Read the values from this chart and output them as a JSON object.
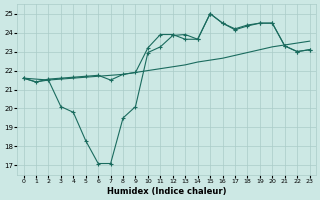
{
  "xlabel": "Humidex (Indice chaleur)",
  "bg_color": "#cce8e4",
  "line_color": "#1a6b5e",
  "grid_color": "#aaccc8",
  "xlim": [
    -0.5,
    23.5
  ],
  "ylim": [
    16.5,
    25.5
  ],
  "yticks": [
    17,
    18,
    19,
    20,
    21,
    22,
    23,
    24,
    25
  ],
  "xticks": [
    0,
    1,
    2,
    3,
    4,
    5,
    6,
    7,
    8,
    9,
    10,
    11,
    12,
    13,
    14,
    15,
    16,
    17,
    18,
    19,
    20,
    21,
    22,
    23
  ],
  "line1_x": [
    0,
    1,
    2,
    3,
    4,
    5,
    6,
    7,
    8,
    9,
    10,
    11,
    12,
    13,
    14,
    15,
    16,
    17,
    18,
    19,
    20,
    21,
    22,
    23
  ],
  "line1_y": [
    21.6,
    21.4,
    21.5,
    21.55,
    21.6,
    21.65,
    21.7,
    21.75,
    21.8,
    21.9,
    22.0,
    22.1,
    22.2,
    22.3,
    22.45,
    22.55,
    22.65,
    22.8,
    22.95,
    23.1,
    23.25,
    23.35,
    23.45,
    23.55
  ],
  "line2_x": [
    0,
    2,
    3,
    4,
    5,
    6,
    7,
    8,
    9,
    10,
    11,
    12,
    13,
    14,
    15,
    16,
    17,
    18,
    19,
    20,
    21,
    22,
    23
  ],
  "line2_y": [
    21.6,
    21.5,
    20.1,
    19.8,
    18.3,
    17.1,
    17.1,
    19.5,
    20.1,
    22.95,
    23.25,
    23.85,
    23.9,
    23.65,
    25.0,
    24.5,
    24.15,
    24.35,
    24.5,
    24.5,
    23.3,
    23.0,
    23.1
  ],
  "line3_x": [
    0,
    1,
    2,
    3,
    4,
    5,
    6,
    7,
    8,
    9,
    10,
    11,
    12,
    13,
    14,
    15,
    16,
    17,
    18,
    19,
    20,
    21,
    22,
    23
  ],
  "line3_y": [
    21.6,
    21.4,
    21.55,
    21.6,
    21.65,
    21.7,
    21.75,
    21.5,
    21.8,
    21.9,
    23.2,
    23.9,
    23.9,
    23.65,
    23.65,
    25.0,
    24.5,
    24.2,
    24.4,
    24.5,
    24.5,
    23.3,
    23.0,
    23.1
  ]
}
